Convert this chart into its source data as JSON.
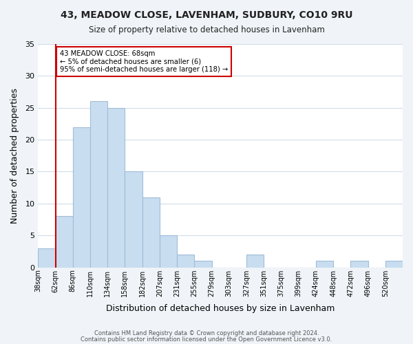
{
  "title": "43, MEADOW CLOSE, LAVENHAM, SUDBURY, CO10 9RU",
  "subtitle": "Size of property relative to detached houses in Lavenham",
  "xlabel": "Distribution of detached houses by size in Lavenham",
  "ylabel": "Number of detached properties",
  "bar_color": "#c8ddf0",
  "bar_edge_color": "#a0bcd8",
  "background_color": "#f0f4f8",
  "plot_bg_color": "#ffffff",
  "bin_labels": [
    "38sqm",
    "62sqm",
    "86sqm",
    "110sqm",
    "134sqm",
    "158sqm",
    "182sqm",
    "207sqm",
    "231sqm",
    "255sqm",
    "279sqm",
    "303sqm",
    "327sqm",
    "351sqm",
    "375sqm",
    "399sqm",
    "424sqm",
    "448sqm",
    "472sqm",
    "496sqm",
    "520sqm"
  ],
  "bar_values": [
    3,
    8,
    22,
    26,
    25,
    15,
    11,
    5,
    2,
    1,
    0,
    0,
    2,
    0,
    0,
    0,
    1,
    0,
    1,
    0,
    1
  ],
  "ylim": [
    0,
    35
  ],
  "yticks": [
    0,
    5,
    10,
    15,
    20,
    25,
    30,
    35
  ],
  "property_line_x": 1,
  "annotation_title": "43 MEADOW CLOSE: 68sqm",
  "annotation_line1": "← 5% of detached houses are smaller (6)",
  "annotation_line2": "95% of semi-detached houses are larger (118) →",
  "annotation_box_color": "#ffffff",
  "annotation_box_edge_color": "#cc0000",
  "property_line_color": "#cc0000",
  "footer_line1": "Contains HM Land Registry data © Crown copyright and database right 2024.",
  "footer_line2": "Contains public sector information licensed under the Open Government Licence v3.0."
}
